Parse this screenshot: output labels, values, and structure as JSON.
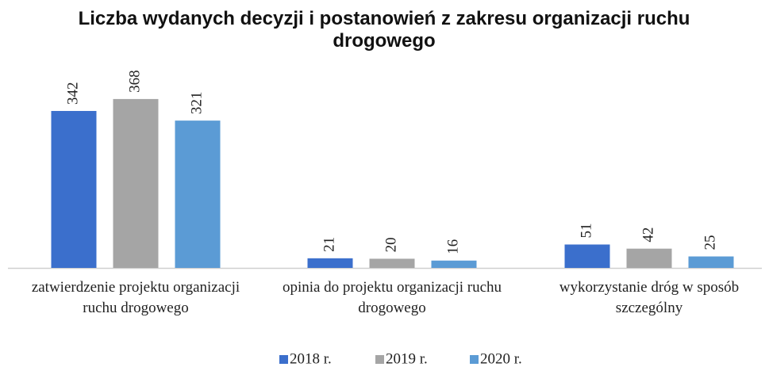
{
  "chart_data": {
    "type": "bar",
    "title": "Liczba wydanych decyzji i postanowień z zakresu organizacji ruchu drogowego",
    "categories": [
      "zatwierdzenie projektu organizacji ruchu drogowego",
      "opinia do projektu organizacji ruchu drogowego",
      "wykorzystanie dróg w sposób szczególny"
    ],
    "series": [
      {
        "name": "2018 r.",
        "color": "#3b6fcc",
        "values": [
          342,
          21,
          51
        ]
      },
      {
        "name": "2019 r.",
        "color": "#a5a5a5",
        "values": [
          368,
          20,
          42
        ]
      },
      {
        "name": "2020 r.",
        "color": "#5b9bd5",
        "values": [
          321,
          16,
          25
        ]
      }
    ],
    "legend": "bottom"
  }
}
